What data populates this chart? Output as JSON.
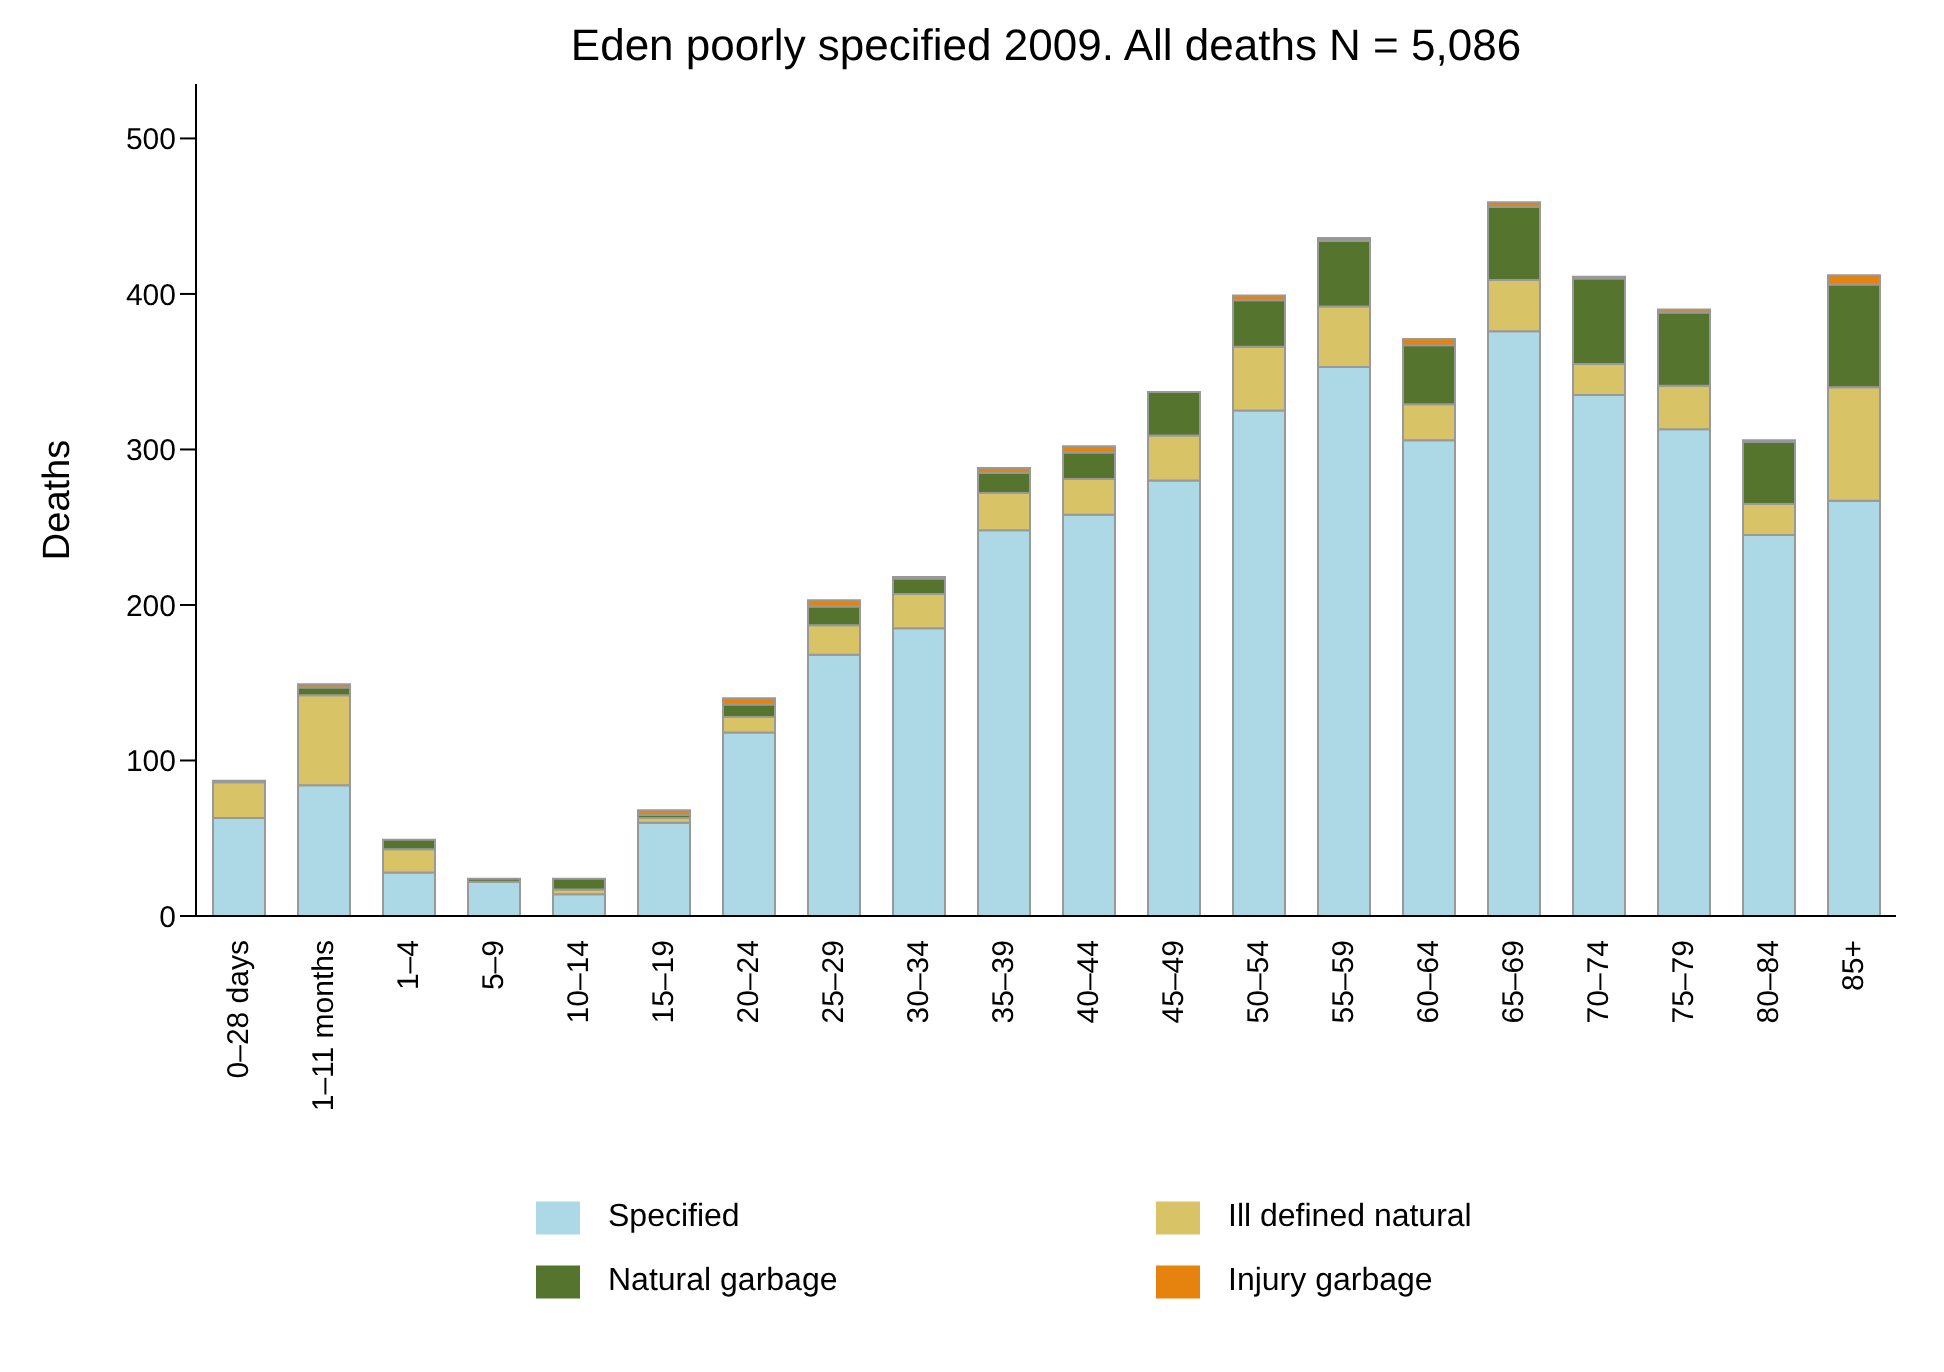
{
  "chart_data": {
    "type": "bar",
    "title": "Eden poorly specified 2009. All deaths N = 5,086",
    "ylabel": "Deaths",
    "stacked": true,
    "categories": [
      "0–28 days",
      "1–11 months",
      "1–4",
      "5–9",
      "10–14",
      "15–19",
      "20–24",
      "25–29",
      "30–34",
      "35–39",
      "40–44",
      "45–49",
      "50–54",
      "55–59",
      "60–64",
      "65–69",
      "70–74",
      "75–79",
      "80–84",
      "85+"
    ],
    "series": [
      {
        "name": "Specified",
        "color": "#add8e6",
        "values": [
          63,
          84,
          28,
          22,
          14,
          60,
          118,
          168,
          185,
          248,
          258,
          280,
          325,
          353,
          306,
          376,
          335,
          313,
          245,
          267
        ]
      },
      {
        "name": "Ill defined natural",
        "color": "#d8c366",
        "values": [
          23,
          58,
          15,
          0,
          3,
          3,
          10,
          19,
          22,
          24,
          23,
          29,
          41,
          39,
          23,
          33,
          20,
          28,
          20,
          73
        ]
      },
      {
        "name": "Natural garbage",
        "color": "#55752f",
        "values": [
          1,
          5,
          6,
          2,
          7,
          2,
          8,
          12,
          10,
          13,
          17,
          28,
          30,
          42,
          38,
          47,
          55,
          47,
          40,
          66
        ]
      },
      {
        "name": "Injury garbage",
        "color": "#e6820e",
        "values": [
          0,
          2,
          0,
          0,
          0,
          3,
          4,
          4,
          1,
          3,
          4,
          0,
          3,
          2,
          4,
          3,
          1,
          2,
          1,
          6
        ]
      }
    ],
    "ylim": [
      0,
      535
    ],
    "yticks": [
      0,
      100,
      200,
      300,
      400,
      500
    ],
    "grid": false,
    "legend": "bottom"
  }
}
